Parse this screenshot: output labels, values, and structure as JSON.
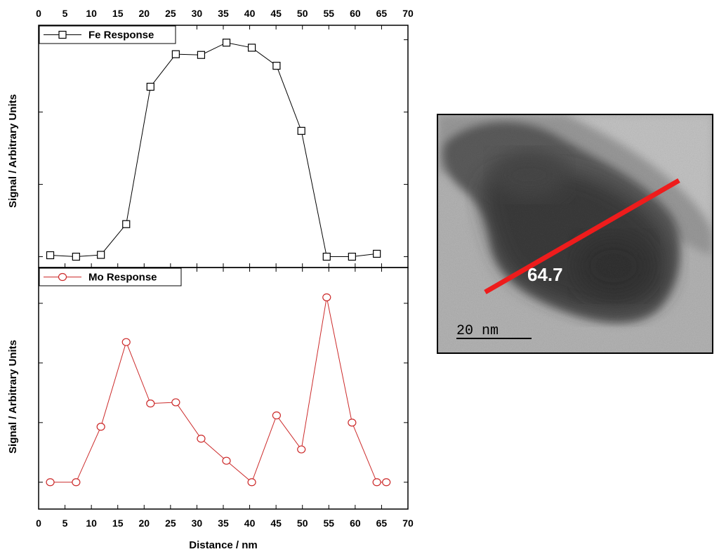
{
  "chart_data": [
    {
      "type": "line",
      "series": [
        {
          "name": "Fe Response",
          "color": "#000000",
          "marker": "square",
          "x": [
            2.2,
            7.1,
            11.8,
            16.6,
            21.2,
            26.0,
            30.8,
            35.6,
            40.4,
            45.1,
            49.8,
            54.6,
            59.4,
            64.1
          ],
          "y": [
            0.02,
            0.0,
            0.025,
            0.45,
            2.35,
            2.8,
            2.79,
            2.96,
            2.89,
            2.64,
            1.74,
            0.0,
            0.0,
            0.04
          ]
        }
      ],
      "xlim": [
        0,
        70
      ],
      "ylim": [
        -0.15,
        3.2
      ],
      "x_ticks": [
        0,
        5,
        10,
        15,
        20,
        25,
        30,
        35,
        40,
        45,
        50,
        55,
        60,
        65,
        70
      ],
      "ylabel": "Signal / Arbitrary Units",
      "x_tick_labels_position": "top",
      "legend_position": "top-left"
    },
    {
      "type": "line",
      "series": [
        {
          "name": "Mo Response",
          "color": "#cc2a2a",
          "marker": "circle",
          "x": [
            2.2,
            7.1,
            11.8,
            16.6,
            21.2,
            26.0,
            30.8,
            35.6,
            40.4,
            45.1,
            49.8,
            54.6,
            59.4,
            64.1,
            65.9
          ],
          "y": [
            0.0,
            0.0,
            0.93,
            2.35,
            1.32,
            1.34,
            0.73,
            0.36,
            0.0,
            1.12,
            0.55,
            3.1,
            1.0,
            0.0,
            0.0
          ]
        }
      ],
      "xlim": [
        0,
        70
      ],
      "ylim": [
        -0.45,
        3.6
      ],
      "x_ticks": [
        0,
        5,
        10,
        15,
        20,
        25,
        30,
        35,
        40,
        45,
        50,
        55,
        60,
        65,
        70
      ],
      "ylabel": "Signal / Arbitrary Units",
      "xlabel": "Distance / nm",
      "legend_position": "top-left"
    }
  ],
  "micrograph": {
    "line_label": "64.7",
    "scale_bar_label": "20 nm",
    "line_color": "#ee1c1c"
  }
}
